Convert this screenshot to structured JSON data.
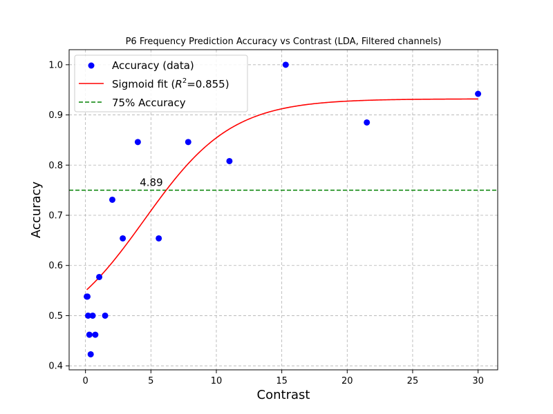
{
  "chart_data": {
    "type": "scatter",
    "title": "P6 Frequency Prediction Accuracy vs Contrast (LDA, Filtered channels)",
    "xlabel": "Contrast",
    "ylabel": "Accuracy",
    "xlim": [
      -1.25,
      31.5
    ],
    "ylim": [
      0.392,
      1.03
    ],
    "xticks": [
      0,
      5,
      10,
      15,
      20,
      25,
      30
    ],
    "yticks": [
      0.4,
      0.5,
      0.6,
      0.7,
      0.8,
      0.9,
      1.0
    ],
    "xtick_labels": [
      "0",
      "5",
      "10",
      "15",
      "20",
      "25",
      "30"
    ],
    "ytick_labels": [
      "0.4",
      "0.5",
      "0.6",
      "0.7",
      "0.8",
      "0.9",
      "1.0"
    ],
    "grid": true,
    "legend_position": "top-left",
    "series": [
      {
        "name": "Accuracy (data)",
        "kind": "scatter",
        "color": "#0000ff",
        "x": [
          0.1,
          0.15,
          0.2,
          0.3,
          0.4,
          0.55,
          0.75,
          1.05,
          1.5,
          2.05,
          2.85,
          4.0,
          5.6,
          7.85,
          11.0,
          15.3,
          21.5,
          30.0
        ],
        "y": [
          0.538,
          0.538,
          0.5,
          0.462,
          0.423,
          0.5,
          0.462,
          0.577,
          0.5,
          0.731,
          0.654,
          0.846,
          0.654,
          0.846,
          0.808,
          1.0,
          0.885,
          0.942
        ]
      },
      {
        "name": "Sigmoid fit ($R^2$=0.855)",
        "legend_label_parts": [
          "Sigmoid fit (",
          "R",
          "2",
          "=0.855)"
        ],
        "kind": "line",
        "color": "#ff0000",
        "model": {
          "bottom": 0.45,
          "top": 0.932,
          "x0": 4.5,
          "k": 0.3
        },
        "x_range": [
          0.1,
          30.0
        ]
      },
      {
        "name": "75% Accuracy",
        "kind": "hline",
        "color": "#008000",
        "y": 0.75
      }
    ],
    "annotations": [
      {
        "text": "4.89",
        "x": 4.89,
        "y": 0.75
      }
    ]
  }
}
